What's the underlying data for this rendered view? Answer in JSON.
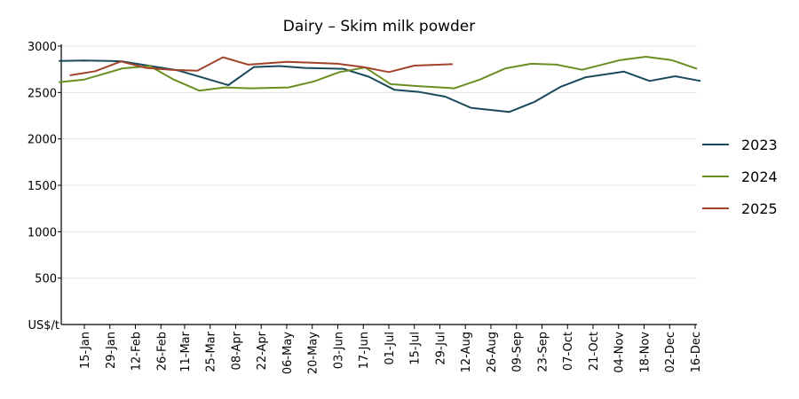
{
  "chart_data": {
    "type": "line",
    "title": "Dairy – Skim milk powder",
    "ylabel": "US$/t",
    "xlabel": "",
    "ylim": [
      0,
      3000
    ],
    "yticks": [
      500,
      1000,
      1500,
      2000,
      2500,
      3000
    ],
    "categories": [
      "15-Jan",
      "29-Jan",
      "12-Feb",
      "26-Feb",
      "11-Mar",
      "25-Mar",
      "08-Apr",
      "22-Apr",
      "06-May",
      "20-May",
      "03-Jun",
      "17-Jun",
      "01-Jul",
      "15-Jul",
      "29-Jul",
      "12-Aug",
      "26-Aug",
      "09-Sep",
      "23-Sep",
      "07-Oct",
      "21-Oct",
      "04-Nov",
      "18-Nov",
      "02-Dec",
      "16-Dec"
    ],
    "grid": "horizontal",
    "legend_position": "right",
    "series": [
      {
        "name": "2023",
        "color": "#1a4a5a",
        "points": [
          [
            "01-Jan",
            2840
          ],
          [
            "15-Jan",
            2845
          ],
          [
            "29-Jan",
            2840
          ],
          [
            "05-Feb",
            2835
          ],
          [
            "19-Feb",
            2790
          ],
          [
            "07-Mar",
            2740
          ],
          [
            "21-Mar",
            2660
          ],
          [
            "04-Apr",
            2580
          ],
          [
            "18-Apr",
            2775
          ],
          [
            "02-May",
            2785
          ],
          [
            "16-May",
            2765
          ],
          [
            "06-Jun",
            2755
          ],
          [
            "20-Jun",
            2670
          ],
          [
            "04-Jul",
            2530
          ],
          [
            "18-Jul",
            2505
          ],
          [
            "01-Aug",
            2455
          ],
          [
            "15-Aug",
            2335
          ],
          [
            "05-Sep",
            2290
          ],
          [
            "19-Sep",
            2400
          ],
          [
            "03-Oct",
            2560
          ],
          [
            "17-Oct",
            2665
          ],
          [
            "07-Nov",
            2725
          ],
          [
            "21-Nov",
            2625
          ],
          [
            "05-Dec",
            2675
          ],
          [
            "19-Dec",
            2625
          ]
        ]
      },
      {
        "name": "2024",
        "color": "#6b8e23",
        "points": [
          [
            "01-Jan",
            2610
          ],
          [
            "15-Jan",
            2640
          ],
          [
            "05-Feb",
            2760
          ],
          [
            "20-Feb",
            2785
          ],
          [
            "05-Mar",
            2640
          ],
          [
            "19-Mar",
            2520
          ],
          [
            "02-Apr",
            2555
          ],
          [
            "16-Apr",
            2545
          ],
          [
            "07-May",
            2555
          ],
          [
            "21-May",
            2620
          ],
          [
            "04-Jun",
            2720
          ],
          [
            "18-Jun",
            2770
          ],
          [
            "02-Jul",
            2590
          ],
          [
            "16-Jul",
            2570
          ],
          [
            "06-Aug",
            2545
          ],
          [
            "20-Aug",
            2640
          ],
          [
            "03-Sep",
            2760
          ],
          [
            "17-Sep",
            2810
          ],
          [
            "01-Oct",
            2800
          ],
          [
            "15-Oct",
            2745
          ],
          [
            "05-Nov",
            2850
          ],
          [
            "19-Nov",
            2885
          ],
          [
            "03-Dec",
            2850
          ],
          [
            "17-Dec",
            2755
          ]
        ]
      },
      {
        "name": "2025",
        "color": "#a0432a",
        "points": [
          [
            "07-Jan",
            2685
          ],
          [
            "21-Jan",
            2730
          ],
          [
            "04-Feb",
            2835
          ],
          [
            "18-Feb",
            2765
          ],
          [
            "04-Mar",
            2745
          ],
          [
            "18-Mar",
            2735
          ],
          [
            "01-Apr",
            2880
          ],
          [
            "15-Apr",
            2800
          ],
          [
            "06-May",
            2830
          ],
          [
            "20-May",
            2820
          ],
          [
            "03-Jun",
            2810
          ],
          [
            "17-Jun",
            2775
          ],
          [
            "01-Jul",
            2720
          ],
          [
            "15-Jul",
            2790
          ],
          [
            "05-Aug",
            2805
          ]
        ]
      }
    ]
  }
}
